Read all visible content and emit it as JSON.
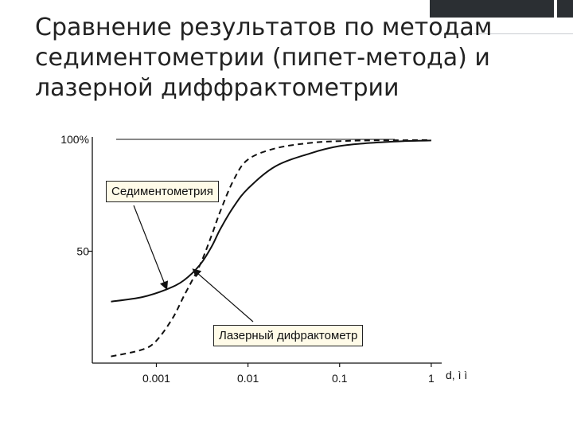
{
  "slide": {
    "title": "Сравнение результатов по методам седиментометрии (пипет-метода) и лазерной диффрактометрии"
  },
  "colors": {
    "ink": "#111111",
    "title": "#222222",
    "decor": "#2b2f33",
    "label_fill": "#fffbe8"
  },
  "chart_data": {
    "type": "line",
    "x_scale": "log",
    "xlim": [
      0.0002,
      1.3
    ],
    "ylim": [
      0,
      100
    ],
    "xlabel": "d, ì ì",
    "ylabel": "",
    "x_ticks": [
      {
        "value": 0.001,
        "label": "0.001"
      },
      {
        "value": 0.01,
        "label": "0.01"
      },
      {
        "value": 0.1,
        "label": "0.1"
      },
      {
        "value": 1,
        "label": "1"
      }
    ],
    "y_ticks": [
      {
        "value": 50,
        "label": "50"
      },
      {
        "value": 100,
        "label": "100%"
      }
    ],
    "grid": false,
    "legend": "none",
    "series": [
      {
        "style": "solid",
        "x": [
          0.00032,
          0.0007,
          0.0013,
          0.002,
          0.003,
          0.004,
          0.005,
          0.007,
          0.01,
          0.02,
          0.05,
          0.1,
          0.2,
          0.5,
          1
        ],
        "y": [
          27.5,
          29.5,
          33,
          37,
          44,
          52,
          60,
          70,
          78,
          88,
          94,
          97,
          98.3,
          99.2,
          99.5
        ]
      },
      {
        "style": "dashed",
        "x": [
          0.00032,
          0.0007,
          0.001,
          0.0015,
          0.002,
          0.003,
          0.004,
          0.005,
          0.007,
          0.01,
          0.02,
          0.05,
          0.1,
          0.2,
          0.5,
          1
        ],
        "y": [
          3,
          6,
          10,
          20,
          30,
          44,
          57,
          68,
          82,
          91,
          96,
          98.5,
          99.2,
          99.5,
          99.6,
          99.7
        ]
      }
    ],
    "annotations": [
      {
        "text": "Седиментометрия",
        "arrow_to": {
          "x": 0.0013,
          "y": 33
        }
      },
      {
        "text": "Лазерный дифрактометр",
        "arrow_to": {
          "x": 0.0025,
          "y": 42
        }
      }
    ],
    "reference_line": {
      "y": 100,
      "from_x": 0.0002,
      "to_x": 0.4
    }
  }
}
